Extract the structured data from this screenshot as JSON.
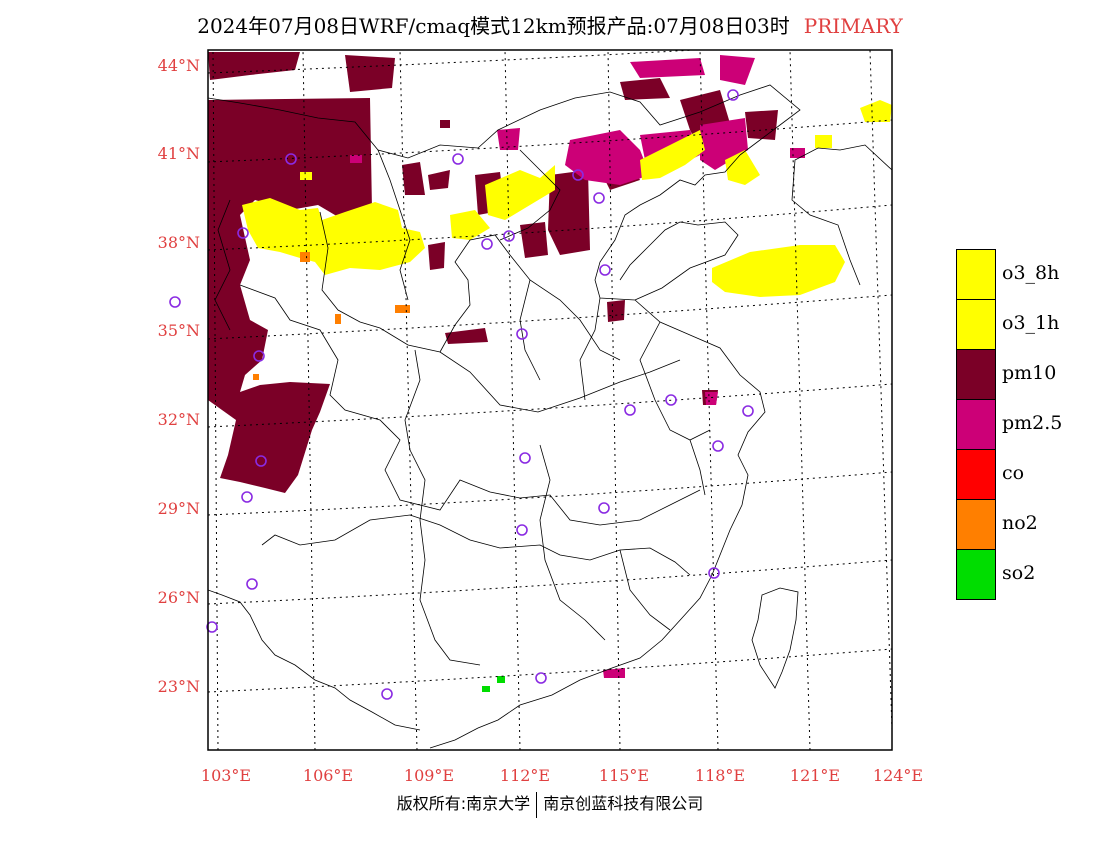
{
  "title": {
    "main": "2024年07月08日WRF/cmaq模式12km预报产品:07月08日03时",
    "tag": "PRIMARY"
  },
  "axes": {
    "lat_labels": [
      "44°N",
      "41°N",
      "38°N",
      "35°N",
      "32°N",
      "29°N",
      "26°N",
      "23°N"
    ],
    "lon_labels": [
      "103°E",
      "106°E",
      "109°E",
      "112°E",
      "115°E",
      "118°E",
      "121°E",
      "124°E"
    ]
  },
  "legend": [
    {
      "label": "o3_8h",
      "color": "#ffff00"
    },
    {
      "label": "o3_1h",
      "color": "#ffff00"
    },
    {
      "label": "pm10",
      "color": "#7b0027"
    },
    {
      "label": "pm2.5",
      "color": "#cc0077"
    },
    {
      "label": "co",
      "color": "#ff0000"
    },
    {
      "label": "no2",
      "color": "#ff7f00"
    },
    {
      "label": "so2",
      "color": "#00dd00"
    }
  ],
  "footer": {
    "left": "版权所有:南京大学",
    "right": "南京创蓝科技有限公司"
  },
  "colors": {
    "accent_text": "#e04040",
    "station_marker": "#8a2be2"
  }
}
